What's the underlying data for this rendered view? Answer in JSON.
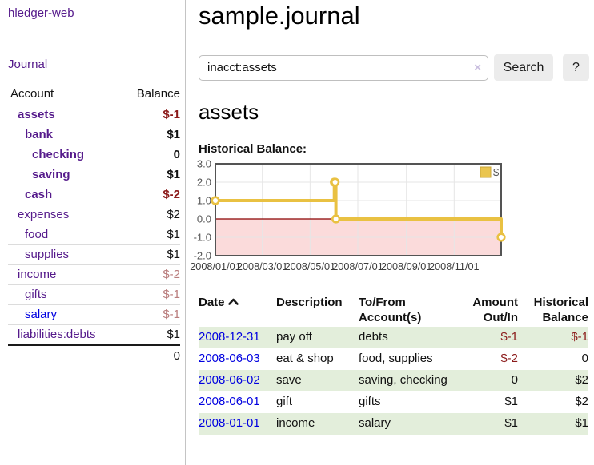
{
  "sidebar": {
    "brand": "hledger-web",
    "journal_link": "Journal",
    "accounts_table": {
      "account_header": "Account",
      "balance_header": "Balance",
      "rows": [
        {
          "name": "assets",
          "level": 1,
          "active": true,
          "balance": "$-1",
          "balance_style": "neg-strong"
        },
        {
          "name": "bank",
          "level": 2,
          "active": true,
          "balance": "$1",
          "balance_style": "plain"
        },
        {
          "name": "checking",
          "level": 3,
          "active": true,
          "balance": "0",
          "balance_style": "plain"
        },
        {
          "name": "saving",
          "level": 3,
          "active": true,
          "balance": "$1",
          "balance_style": "plain"
        },
        {
          "name": "cash",
          "level": 2,
          "active": true,
          "balance": "$-2",
          "balance_style": "neg-strong"
        },
        {
          "name": "expenses",
          "level": 1,
          "active": false,
          "balance": "$2",
          "balance_style": "plain"
        },
        {
          "name": "food",
          "level": 2,
          "active": false,
          "balance": "$1",
          "balance_style": "plain"
        },
        {
          "name": "supplies",
          "level": 2,
          "active": false,
          "balance": "$1",
          "balance_style": "plain"
        },
        {
          "name": "income",
          "level": 1,
          "active": false,
          "balance": "$-2",
          "balance_style": "neg-soft"
        },
        {
          "name": "gifts",
          "level": 2,
          "active": false,
          "balance": "$-1",
          "balance_style": "neg-soft"
        },
        {
          "name": "salary",
          "level": 2,
          "active": false,
          "balance": "$-1",
          "balance_style": "neg-soft",
          "unvisited": true
        },
        {
          "name": "liabilities:debts",
          "level": 1,
          "active": false,
          "balance": "$1",
          "balance_style": "plain"
        }
      ],
      "total": "0"
    }
  },
  "main": {
    "title": "sample.journal",
    "search": {
      "value": "inacct:assets",
      "clear_icon": "×",
      "search_button": "Search",
      "help_button": "?"
    },
    "account_heading": "assets",
    "chart_label": "Historical Balance:"
  },
  "chart_data": {
    "type": "line",
    "style": "steps-post",
    "title": "Historical Balance",
    "x_start": "2008-01-01",
    "x_end": "2008-12-31",
    "ylim": [
      -2,
      3
    ],
    "y_ticks": [
      {
        "label": "3.0",
        "v": 3
      },
      {
        "label": "2.0",
        "v": 2
      },
      {
        "label": "1.0",
        "v": 1
      },
      {
        "label": "0.0",
        "v": 0
      },
      {
        "label": "-1.0",
        "v": -1
      },
      {
        "label": "-2.0",
        "v": -2
      }
    ],
    "x_ticks": [
      {
        "label": "2008/01/01",
        "date": "2008-01-01"
      },
      {
        "label": "2008/03/01",
        "date": "2008-03-01"
      },
      {
        "label": "2008/05/01",
        "date": "2008-05-01"
      },
      {
        "label": "2008/07/01",
        "date": "2008-07-01"
      },
      {
        "label": "2008/09/01",
        "date": "2008-09-01"
      },
      {
        "label": "2008/11/01",
        "date": "2008-11-01"
      }
    ],
    "series": [
      {
        "name": "$",
        "color": "#e9c142",
        "points": [
          [
            "2008-01-01",
            1
          ],
          [
            "2008-06-01",
            2
          ],
          [
            "2008-06-02",
            2
          ],
          [
            "2008-06-03",
            0
          ],
          [
            "2008-12-31",
            -1
          ]
        ]
      }
    ],
    "legend": {
      "label": "$",
      "swatch_color": "#eac54f",
      "swatch_border": "#c8a53a",
      "position": "top-right"
    },
    "colors": {
      "negative_region_fill": "#fbdbdb",
      "zero_line": "#8b0000",
      "grid": "#e6e6e6",
      "plot_border": "#545454",
      "tick_text": "#545454",
      "x_tick_text": "#3c3c3c"
    },
    "grid": true
  },
  "register": {
    "headers": {
      "date": "Date",
      "description": "Description",
      "account": "To/From Account(s)",
      "amount": "Amount Out/In",
      "balance": "Historical Balance"
    },
    "rows": [
      {
        "date": "2008-12-31",
        "description": "pay off",
        "accounts": "debts",
        "amount": "$-1",
        "amount_neg": true,
        "balance": "$-1",
        "balance_neg": true,
        "shade": true
      },
      {
        "date": "2008-06-03",
        "description": "eat & shop",
        "accounts": "food, supplies",
        "amount": "$-2",
        "amount_neg": true,
        "balance": "0",
        "balance_neg": false,
        "shade": false
      },
      {
        "date": "2008-06-02",
        "description": "save",
        "accounts": "saving, checking",
        "amount": "0",
        "amount_neg": false,
        "balance": "$2",
        "balance_neg": false,
        "shade": true
      },
      {
        "date": "2008-06-01",
        "description": "gift",
        "accounts": "gifts",
        "amount": "$1",
        "amount_neg": false,
        "balance": "$2",
        "balance_neg": false,
        "shade": false
      },
      {
        "date": "2008-01-01",
        "description": "income",
        "accounts": "salary",
        "amount": "$1",
        "amount_neg": false,
        "balance": "$1",
        "balance_neg": false,
        "shade": true
      }
    ]
  }
}
